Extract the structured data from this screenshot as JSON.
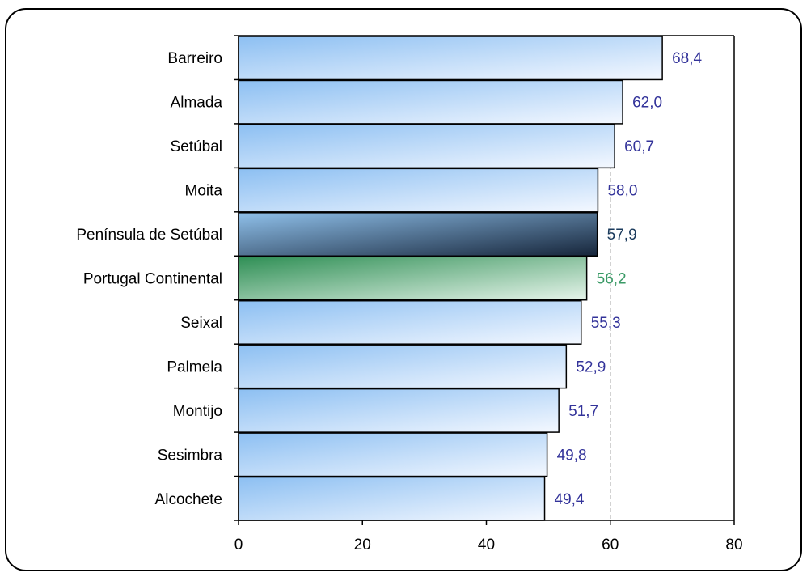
{
  "chart_data": {
    "type": "bar",
    "orientation": "horizontal",
    "title": "",
    "xlabel": "",
    "ylabel": "",
    "categories": [
      "Barreiro",
      "Almada",
      "Setúbal",
      "Moita",
      "Península de Setúbal",
      "Portugal Continental",
      "Seixal",
      "Palmela",
      "Montijo",
      "Sesimbra",
      "Alcochete"
    ],
    "values": [
      68.4,
      62.0,
      60.7,
      58.0,
      57.9,
      56.2,
      55.3,
      52.9,
      51.7,
      49.8,
      49.4
    ],
    "value_labels": [
      "68,4",
      "62,0",
      "60,7",
      "58,0",
      "57,9",
      "56,2",
      "55,3",
      "52,9",
      "51,7",
      "49,8",
      "49,4"
    ],
    "bar_styles": [
      "blue",
      "blue",
      "blue",
      "blue",
      "navy",
      "green",
      "blue",
      "blue",
      "blue",
      "blue",
      "blue"
    ],
    "xlim": [
      0,
      80
    ],
    "xticks": [
      "0",
      "20",
      "40",
      "60",
      "80"
    ],
    "reference_line": 60,
    "grid": false,
    "legend": "none",
    "colors": {
      "blue_bar_start": "#8cbff2",
      "blue_bar_end": "#f4f8ff",
      "navy_bar_start": "#8fc0ea",
      "navy_bar_end": "#16253a",
      "green_bar_start": "#2f8f55",
      "green_bar_end": "#e6f4ea",
      "value_blue": "#33339a",
      "value_navy": "#1a3a5c",
      "value_green": "#3a9a66",
      "reference_line": "#a6a6a6"
    }
  }
}
